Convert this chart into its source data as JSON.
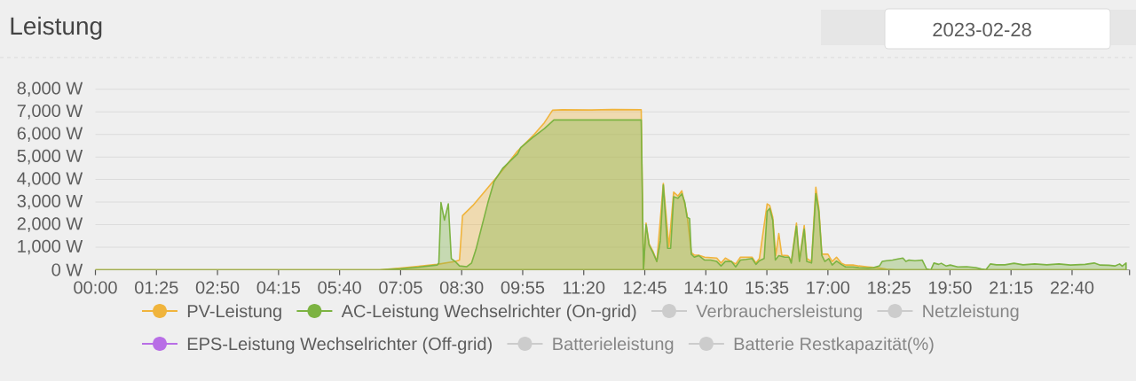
{
  "chart_data": {
    "type": "area",
    "title": "Leistung",
    "subtitle": "2023-02-28",
    "xlim": [
      0,
      24
    ],
    "ylim": [
      0,
      8000
    ],
    "xticks": [
      {
        "value": 0,
        "label": "00:00"
      },
      {
        "value": 1.4167,
        "label": "01:25"
      },
      {
        "value": 2.8333,
        "label": "02:50"
      },
      {
        "value": 4.25,
        "label": "04:15"
      },
      {
        "value": 5.6667,
        "label": "05:40"
      },
      {
        "value": 7.0833,
        "label": "07:05"
      },
      {
        "value": 8.5,
        "label": "08:30"
      },
      {
        "value": 9.9167,
        "label": "09:55"
      },
      {
        "value": 11.3333,
        "label": "11:20"
      },
      {
        "value": 12.75,
        "label": "12:45"
      },
      {
        "value": 14.1667,
        "label": "14:10"
      },
      {
        "value": 15.5833,
        "label": "15:35"
      },
      {
        "value": 17,
        "label": "17:00"
      },
      {
        "value": 18.4167,
        "label": "18:25"
      },
      {
        "value": 19.8333,
        "label": "19:50"
      },
      {
        "value": 21.25,
        "label": "21:15"
      },
      {
        "value": 22.6667,
        "label": "22:40"
      },
      {
        "value": 24,
        "label": null
      }
    ],
    "yticks": [
      {
        "value": 0,
        "label": "0 W"
      },
      {
        "value": 1000,
        "label": "1,000 W"
      },
      {
        "value": 2000,
        "label": "2,000 W"
      },
      {
        "value": 3000,
        "label": "3,000 W"
      },
      {
        "value": 4000,
        "label": "4,000 W"
      },
      {
        "value": 5000,
        "label": "5,000 W"
      },
      {
        "value": 6000,
        "label": "6,000 W"
      },
      {
        "value": 7000,
        "label": "7,000 W"
      },
      {
        "value": 8000,
        "label": "8,000 W"
      }
    ],
    "grid": "y",
    "legend": "bottom",
    "series": [
      {
        "name": "PV-Leistung",
        "color": "#f0b43c",
        "x": [
          0,
          6.6,
          7.08,
          7.5,
          7.93,
          8.35,
          8.45,
          8.52,
          8.76,
          9.11,
          9.45,
          9.8,
          10.15,
          10.42,
          10.61,
          10.83,
          11.5,
          12.0,
          12.667,
          12.72,
          12.78,
          12.85,
          12.94,
          13.03,
          13.18,
          13.31,
          13.42,
          13.52,
          13.61,
          13.73,
          13.83,
          13.9,
          14.0,
          14.14,
          14.42,
          14.52,
          14.62,
          14.86,
          14.97,
          15.24,
          15.33,
          15.41,
          15.59,
          15.65,
          15.72,
          15.79,
          15.86,
          15.93,
          16.07,
          16.15,
          16.27,
          16.34,
          16.45,
          16.51,
          16.62,
          16.72,
          16.79,
          16.86,
          17.0,
          17.1,
          17.2,
          17.31,
          17.41,
          17.58,
          17.72,
          17.93,
          18.13,
          18.36,
          18.57,
          23.92
        ],
        "values": [
          0,
          0,
          80,
          160,
          240,
          370,
          430,
          2400,
          2850,
          3640,
          4420,
          5270,
          5930,
          6520,
          7070,
          7090,
          7080,
          7100,
          7090,
          0,
          2070,
          1150,
          820,
          370,
          3830,
          1020,
          3440,
          3270,
          3500,
          2460,
          760,
          650,
          650,
          560,
          520,
          300,
          520,
          260,
          560,
          560,
          300,
          500,
          2920,
          2850,
          2330,
          630,
          1610,
          650,
          630,
          370,
          2070,
          430,
          1960,
          500,
          370,
          3660,
          2720,
          690,
          690,
          370,
          560,
          300,
          210,
          210,
          170,
          130,
          100,
          30,
          0,
          0
        ]
      },
      {
        "name": "AC-Leistung Wechselrichter (On-grid)",
        "color": "#7cb342",
        "x": [
          0,
          6.6,
          7.08,
          7.5,
          7.93,
          7.97,
          8.02,
          8.1,
          8.19,
          8.26,
          8.35,
          8.45,
          8.62,
          8.73,
          8.83,
          8.97,
          9.11,
          9.25,
          9.45,
          9.66,
          9.8,
          9.87,
          10.15,
          10.42,
          10.64,
          12.667,
          12.72,
          12.78,
          12.85,
          12.94,
          13.03,
          13.11,
          13.18,
          13.28,
          13.35,
          13.42,
          13.52,
          13.61,
          13.68,
          13.73,
          13.79,
          13.83,
          13.9,
          14.0,
          14.14,
          14.28,
          14.42,
          14.52,
          14.62,
          14.76,
          14.86,
          14.97,
          15.1,
          15.24,
          15.33,
          15.41,
          15.52,
          15.59,
          15.65,
          15.72,
          15.78,
          15.86,
          16.0,
          16.1,
          16.15,
          16.27,
          16.34,
          16.45,
          16.51,
          16.62,
          16.72,
          16.79,
          16.86,
          16.93,
          17.02,
          17.1,
          17.2,
          17.31,
          17.41,
          17.58,
          17.72,
          17.93,
          18.06,
          18.2,
          18.26,
          18.36,
          18.5,
          18.6,
          18.74,
          18.81,
          18.88,
          19.02,
          19.19,
          19.29,
          19.39,
          19.46,
          19.57,
          19.63,
          19.74,
          19.84,
          20.01,
          20.22,
          20.43,
          20.56,
          20.67,
          20.77,
          20.91,
          21.11,
          21.32,
          21.53,
          21.8,
          22.08,
          22.36,
          22.63,
          22.97,
          23.18,
          23.32,
          23.52,
          23.66,
          23.77,
          23.83,
          23.92
        ],
        "values": [
          0,
          0,
          50,
          120,
          210,
          300,
          2980,
          2200,
          2920,
          500,
          370,
          170,
          140,
          300,
          890,
          1940,
          2980,
          3900,
          4490,
          4880,
          5140,
          5410,
          5860,
          6260,
          6640,
          6640,
          0,
          2000,
          1090,
          760,
          370,
          1280,
          3760,
          950,
          950,
          3240,
          3170,
          3370,
          2980,
          2330,
          2270,
          690,
          560,
          630,
          430,
          430,
          370,
          170,
          370,
          370,
          130,
          430,
          460,
          500,
          240,
          400,
          500,
          2590,
          2720,
          2200,
          430,
          630,
          560,
          560,
          300,
          1930,
          370,
          1800,
          370,
          300,
          3370,
          2590,
          630,
          370,
          500,
          210,
          390,
          240,
          130,
          130,
          100,
          80,
          100,
          180,
          370,
          400,
          430,
          470,
          520,
          370,
          430,
          400,
          430,
          40,
          0,
          300,
          240,
          290,
          170,
          210,
          130,
          140,
          100,
          40,
          10,
          260,
          220,
          220,
          290,
          220,
          260,
          220,
          260,
          210,
          240,
          300,
          210,
          200,
          170,
          260,
          160,
          300
        ]
      },
      {
        "name": "Verbrauchersleistung",
        "color": "#cccccc"
      },
      {
        "name": "Netzleistung",
        "color": "#cccccc"
      },
      {
        "name": "EPS-Leistung Wechselrichter (Off-grid)",
        "color": "#b86ee6"
      },
      {
        "name": "Batterieleistung",
        "color": "#cccccc"
      },
      {
        "name": "Batterie Restkapazität(%)",
        "color": "#cccccc"
      }
    ]
  }
}
